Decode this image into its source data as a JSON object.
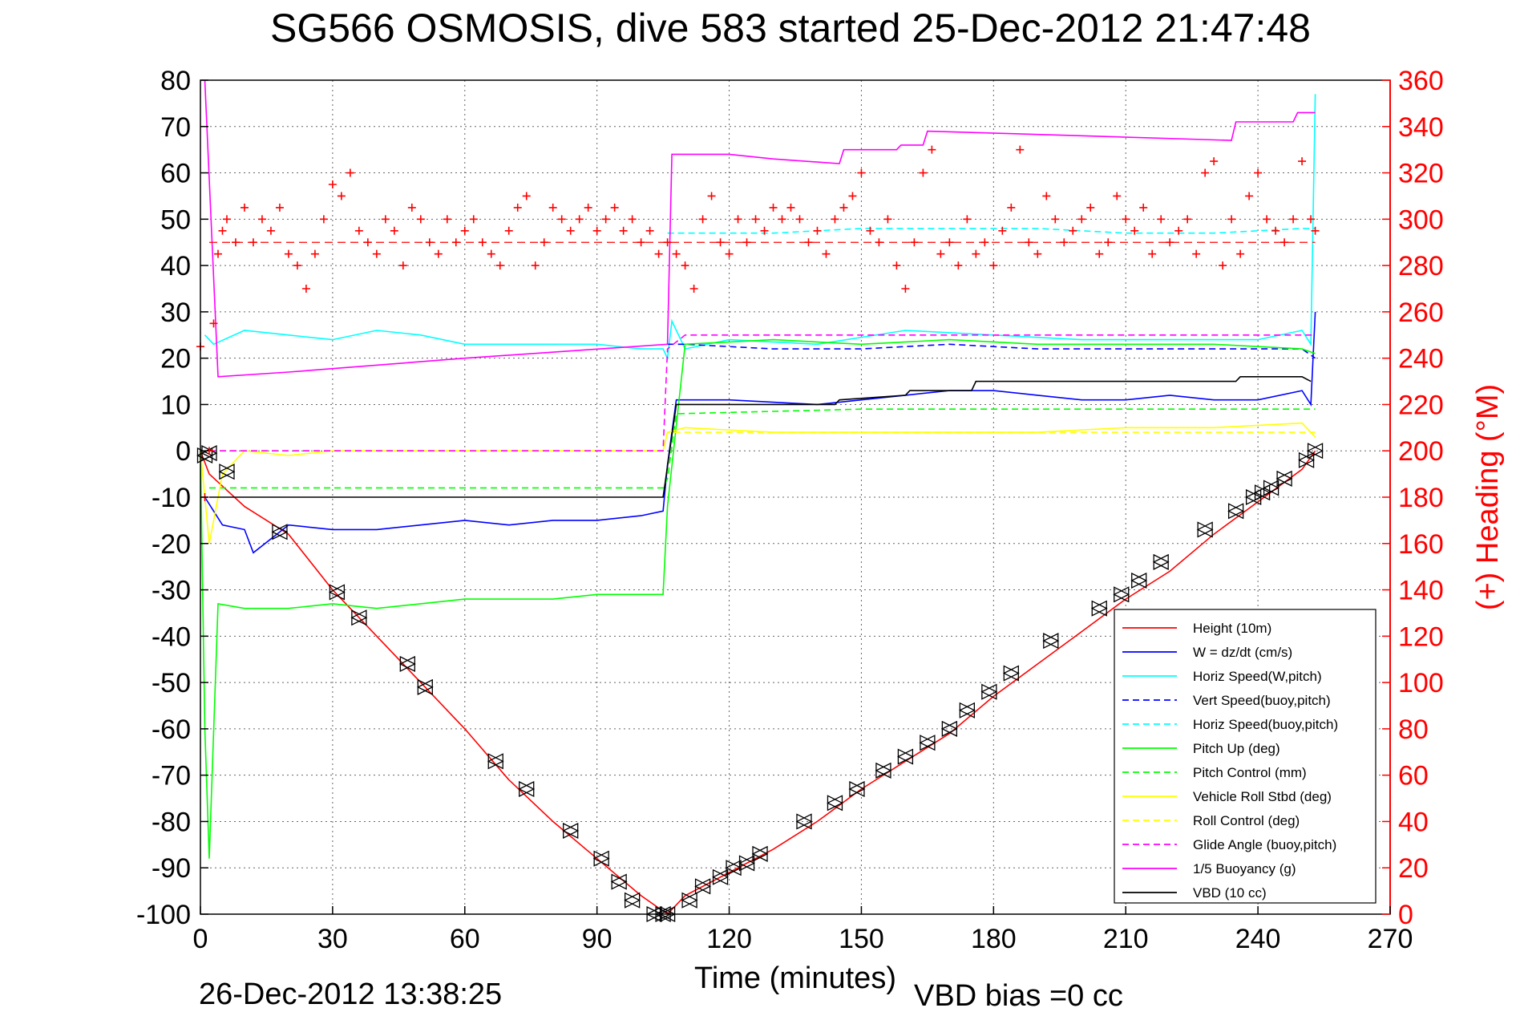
{
  "chart_data": {
    "type": "line",
    "title": "SG566 OSMOSIS, dive 583 started 25-Dec-2012 21:47:48",
    "xlabel": "Time (minutes)",
    "ylabel_right": "(+) Heading (°M)",
    "footer_left": "26-Dec-2012 13:38:25",
    "footer_right": "VBD bias =0 cc",
    "xlim": [
      0,
      270
    ],
    "ylim": [
      -100,
      80
    ],
    "ylim_right": [
      0,
      360
    ],
    "x_ticks": [
      "0",
      "30",
      "60",
      "90",
      "120",
      "150",
      "180",
      "210",
      "240",
      "270"
    ],
    "y_ticks": [
      "80",
      "70",
      "60",
      "50",
      "40",
      "30",
      "20",
      "10",
      "0",
      "-10",
      "-20",
      "-30",
      "-40",
      "-50",
      "-60",
      "-70",
      "-80",
      "-90",
      "-100"
    ],
    "y_ticks_right": [
      "360",
      "340",
      "320",
      "300",
      "280",
      "260",
      "240",
      "220",
      "200",
      "180",
      "160",
      "140",
      "120",
      "100",
      "80",
      "60",
      "40",
      "20",
      "0"
    ],
    "grid": true,
    "legend_position": "bottom-right",
    "colors": {
      "height": "#ff0000",
      "w": "#0000ff",
      "horiz": "#00ffff",
      "pitch": "#00ff00",
      "roll": "#ffff00",
      "glide": "#ff00ff",
      "vbd": "#000000",
      "heading": "#ff0000"
    },
    "series": [
      {
        "name": "Height (10m)",
        "color": "#ff0000",
        "dash": "solid",
        "x": [
          0,
          2,
          10,
          20,
          30,
          40,
          50,
          60,
          70,
          80,
          90,
          100,
          106,
          110,
          120,
          130,
          140,
          150,
          160,
          170,
          180,
          190,
          200,
          210,
          220,
          230,
          240,
          250,
          253
        ],
        "y": [
          0,
          -5,
          -12,
          -18,
          -30,
          -40,
          -50,
          -60,
          -71,
          -80,
          -88,
          -96,
          -100,
          -96,
          -91,
          -86,
          -80,
          -73,
          -67,
          -61,
          -53,
          -46,
          -39,
          -32,
          -26,
          -18,
          -11,
          -4,
          0
        ]
      },
      {
        "name": "W = dz/dt (cm/s)",
        "color": "#0000ff",
        "dash": "solid",
        "x": [
          1,
          5,
          10,
          12,
          20,
          30,
          40,
          50,
          60,
          70,
          80,
          90,
          100,
          105,
          106,
          108,
          120,
          140,
          150,
          160,
          170,
          180,
          190,
          200,
          210,
          220,
          230,
          240,
          250,
          252,
          253
        ],
        "y": [
          -10,
          -16,
          -17,
          -22,
          -16,
          -17,
          -17,
          -16,
          -15,
          -16,
          -15,
          -15,
          -14,
          -13,
          -3,
          11,
          11,
          10,
          11,
          12,
          13,
          13,
          12,
          11,
          11,
          12,
          11,
          11,
          13,
          10,
          30
        ]
      },
      {
        "name": "Horiz Speed(W,pitch)",
        "color": "#00ffff",
        "dash": "solid",
        "x": [
          1,
          3,
          10,
          20,
          30,
          40,
          50,
          60,
          70,
          80,
          90,
          100,
          105,
          106,
          107,
          110,
          120,
          140,
          160,
          180,
          200,
          220,
          240,
          250,
          252,
          253
        ],
        "y": [
          25,
          23,
          26,
          25,
          24,
          26,
          25,
          23,
          23,
          23,
          23,
          22,
          22,
          20,
          28,
          22,
          24,
          23,
          26,
          25,
          24,
          24,
          24,
          26,
          23,
          77
        ]
      },
      {
        "name": "Vert Speed(buoy,pitch)",
        "color": "#0000ff",
        "dash": "dash",
        "x": [
          106,
          110,
          130,
          150,
          170,
          190,
          210,
          230,
          250,
          253
        ],
        "y": [
          23,
          23,
          22,
          22,
          23,
          22,
          22,
          22,
          22,
          20
        ]
      },
      {
        "name": "Horiz Speed(buoy,pitch)",
        "color": "#00ffff",
        "dash": "dash",
        "x": [
          106,
          110,
          130,
          150,
          170,
          190,
          210,
          230,
          250,
          253
        ],
        "y": [
          47,
          47,
          47,
          48,
          48,
          48,
          47,
          47,
          48,
          48
        ]
      },
      {
        "name": "Pitch Up (deg)",
        "color": "#00ff00",
        "dash": "solid",
        "x": [
          0,
          1,
          2,
          4,
          10,
          20,
          30,
          40,
          50,
          60,
          70,
          80,
          90,
          100,
          105,
          106,
          110,
          130,
          150,
          170,
          190,
          210,
          230,
          250,
          253
        ],
        "y": [
          0,
          -60,
          -88,
          -33,
          -34,
          -34,
          -33,
          -34,
          -33,
          -32,
          -32,
          -32,
          -31,
          -31,
          -31,
          -12,
          23,
          24,
          23,
          24,
          23,
          23,
          23,
          22,
          21
        ]
      },
      {
        "name": "Pitch Control (mm)",
        "color": "#00ff00",
        "dash": "dash",
        "x": [
          2,
          105,
          106,
          108,
          150,
          200,
          253
        ],
        "y": [
          -8,
          -8,
          -6,
          8,
          9,
          9,
          9
        ]
      },
      {
        "name": "Vehicle Roll Stbd (deg)",
        "color": "#ffff00",
        "dash": "solid",
        "x": [
          0,
          2,
          5,
          10,
          20,
          30,
          40,
          60,
          80,
          100,
          105,
          106,
          110,
          130,
          150,
          170,
          190,
          210,
          230,
          250,
          253
        ],
        "y": [
          0,
          -20,
          -5,
          0,
          -1,
          0,
          0,
          0,
          0,
          0,
          0,
          4,
          5,
          4,
          4,
          4,
          4,
          5,
          5,
          6,
          3
        ]
      },
      {
        "name": "Roll Control (deg)",
        "color": "#ffff00",
        "dash": "dash",
        "x": [
          2,
          105,
          106,
          253
        ],
        "y": [
          0,
          0,
          4,
          4
        ]
      },
      {
        "name": "Glide Angle (buoy,pitch)",
        "color": "#ff00ff",
        "dash": "dash",
        "x": [
          2,
          105,
          106,
          110,
          150,
          200,
          253
        ],
        "y": [
          0,
          0,
          22,
          25,
          25,
          25,
          25
        ]
      },
      {
        "name": "1/5 Buoyancy (g)",
        "color": "#ff00ff",
        "dash": "solid",
        "x": [
          1,
          4,
          20,
          60,
          106,
          107,
          120,
          130,
          145,
          146,
          158,
          159,
          164,
          165,
          200,
          234,
          235,
          248,
          249,
          253
        ],
        "y": [
          80,
          16,
          17,
          20,
          23,
          64,
          64,
          63,
          62,
          65,
          65,
          66,
          66,
          69,
          68,
          67,
          71,
          71,
          73,
          73
        ]
      },
      {
        "name": "VBD (10 cc)",
        "color": "#000000",
        "dash": "solid",
        "x": [
          2,
          105,
          108,
          144,
          145,
          160,
          161,
          175,
          176,
          235,
          236,
          250,
          252
        ],
        "y": [
          -10,
          -10,
          10,
          10,
          11,
          12,
          13,
          13,
          15,
          15,
          16,
          16,
          15
        ]
      }
    ],
    "markers": {
      "name": "Depth markers",
      "x": [
        1,
        2,
        6,
        18,
        31,
        36,
        47,
        51,
        67,
        74,
        84,
        91,
        95,
        98,
        103,
        105,
        106,
        111,
        114,
        118,
        121,
        124,
        127,
        137,
        144,
        149,
        155,
        160,
        165,
        170,
        174,
        179,
        184,
        193,
        204,
        209,
        213,
        218,
        228,
        235,
        239,
        241,
        243,
        246,
        251,
        253
      ],
      "y": [
        -1,
        -0.5,
        -4.5,
        -17.5,
        -30.5,
        -36,
        -46,
        -51,
        -67,
        -73,
        -82,
        -88,
        -93,
        -97,
        -100,
        -100,
        -100,
        -97,
        -94,
        -92,
        -90,
        -89,
        -87,
        -80,
        -76,
        -73,
        -69,
        -66,
        -63,
        -60,
        -56,
        -52,
        -48,
        -41,
        -34,
        -31,
        -28,
        -24,
        -17,
        -13,
        -10,
        -9,
        -8,
        -6,
        -2,
        0
      ]
    },
    "heading": {
      "name": "(+) Heading",
      "mean": 290,
      "x": [
        0,
        1,
        2,
        3,
        4,
        5,
        6,
        8,
        10,
        12,
        14,
        16,
        18,
        20,
        22,
        24,
        26,
        28,
        30,
        32,
        34,
        36,
        38,
        40,
        42,
        44,
        46,
        48,
        50,
        52,
        54,
        56,
        58,
        60,
        62,
        64,
        66,
        68,
        70,
        72,
        74,
        76,
        78,
        80,
        82,
        84,
        86,
        88,
        90,
        92,
        94,
        96,
        98,
        100,
        102,
        104,
        106,
        108,
        110,
        112,
        114,
        116,
        118,
        120,
        122,
        124,
        126,
        128,
        130,
        132,
        134,
        136,
        138,
        140,
        142,
        144,
        146,
        148,
        150,
        152,
        154,
        156,
        158,
        160,
        162,
        164,
        166,
        168,
        170,
        172,
        174,
        176,
        178,
        180,
        182,
        184,
        186,
        188,
        190,
        192,
        194,
        196,
        198,
        200,
        202,
        204,
        206,
        208,
        210,
        212,
        214,
        216,
        218,
        220,
        222,
        224,
        226,
        228,
        230,
        232,
        234,
        236,
        238,
        240,
        242,
        244,
        246,
        248,
        250,
        252,
        253
      ],
      "y": [
        245,
        180,
        200,
        255,
        285,
        295,
        300,
        290,
        305,
        290,
        300,
        295,
        305,
        285,
        280,
        270,
        285,
        300,
        315,
        310,
        320,
        295,
        290,
        285,
        300,
        295,
        280,
        305,
        300,
        290,
        285,
        300,
        290,
        295,
        300,
        290,
        285,
        280,
        295,
        305,
        310,
        280,
        290,
        305,
        300,
        295,
        300,
        305,
        295,
        300,
        305,
        295,
        300,
        290,
        295,
        285,
        290,
        285,
        280,
        270,
        300,
        310,
        290,
        285,
        300,
        290,
        300,
        295,
        305,
        300,
        305,
        300,
        290,
        295,
        285,
        300,
        305,
        310,
        320,
        295,
        290,
        300,
        280,
        270,
        290,
        320,
        330,
        285,
        290,
        280,
        300,
        285,
        290,
        280,
        295,
        305,
        330,
        290,
        285,
        310,
        300,
        290,
        295,
        300,
        305,
        285,
        290,
        310,
        300,
        295,
        305,
        285,
        300,
        290,
        295,
        300,
        285,
        320,
        325,
        280,
        300,
        285,
        310,
        320,
        300,
        295,
        290,
        300,
        325,
        300,
        295
      ]
    }
  },
  "legend": {
    "items": [
      {
        "label": "Height (10m)",
        "color": "#ff0000",
        "dash": "solid"
      },
      {
        "label": "W = dz/dt (cm/s)",
        "color": "#0000ff",
        "dash": "solid"
      },
      {
        "label": "Horiz Speed(W,pitch)",
        "color": "#00ffff",
        "dash": "solid"
      },
      {
        "label": "Vert Speed(buoy,pitch)",
        "color": "#0000ff",
        "dash": "dash"
      },
      {
        "label": "Horiz Speed(buoy,pitch)",
        "color": "#00ffff",
        "dash": "dash"
      },
      {
        "label": "Pitch Up (deg)",
        "color": "#00ff00",
        "dash": "solid"
      },
      {
        "label": "Pitch Control (mm)",
        "color": "#00ff00",
        "dash": "dash"
      },
      {
        "label": "Vehicle Roll Stbd (deg)",
        "color": "#ffff00",
        "dash": "solid"
      },
      {
        "label": "Roll Control (deg)",
        "color": "#ffff00",
        "dash": "dash"
      },
      {
        "label": "Glide Angle (buoy,pitch)",
        "color": "#ff00ff",
        "dash": "dash"
      },
      {
        "label": "1/5 Buoyancy (g)",
        "color": "#ff00ff",
        "dash": "solid"
      },
      {
        "label": "VBD (10 cc)",
        "color": "#000000",
        "dash": "solid"
      }
    ]
  }
}
